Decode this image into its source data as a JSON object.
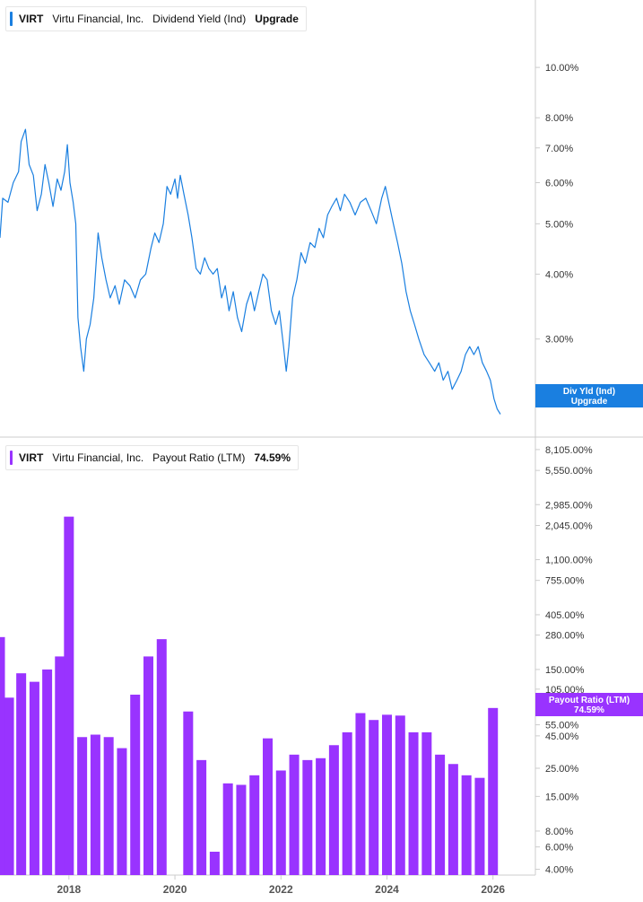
{
  "colors": {
    "dividend_line": "#1a7fe0",
    "payout_bar": "#9933ff",
    "axis": "#cccccc",
    "text": "#333333"
  },
  "legend_top": {
    "symbol": "VIRT",
    "company": "Virtu Financial, Inc.",
    "metric": "Dividend Yield (Ind)",
    "value": "Upgrade"
  },
  "legend_bottom": {
    "symbol": "VIRT",
    "company": "Virtu Financial, Inc.",
    "metric": "Payout Ratio (LTM)",
    "value": "74.59%"
  },
  "chart_data": [
    {
      "type": "line",
      "title": "VIRT Virtu Financial, Inc. Dividend Yield (Ind)",
      "y_scale": "log",
      "ylim": [
        1.95,
        11.5
      ],
      "xlim": [
        2016.7,
        2026.8
      ],
      "y_ticks": [
        {
          "v": 10,
          "label": "10.00%"
        },
        {
          "v": 8,
          "label": "8.00%"
        },
        {
          "v": 7,
          "label": "7.00%"
        },
        {
          "v": 6,
          "label": "6.00%"
        },
        {
          "v": 5,
          "label": "5.00%"
        },
        {
          "v": 4,
          "label": "4.00%"
        },
        {
          "v": 3,
          "label": "3.00%"
        }
      ],
      "series": [
        {
          "name": "Dividend Yield (Ind)",
          "points": [
            [
              2016.7,
              4.7
            ],
            [
              2016.75,
              5.6
            ],
            [
              2016.85,
              5.5
            ],
            [
              2016.95,
              6.0
            ],
            [
              2017.05,
              6.3
            ],
            [
              2017.1,
              7.2
            ],
            [
              2017.18,
              7.6
            ],
            [
              2017.25,
              6.5
            ],
            [
              2017.33,
              6.2
            ],
            [
              2017.4,
              5.3
            ],
            [
              2017.48,
              5.7
            ],
            [
              2017.55,
              6.5
            ],
            [
              2017.62,
              6.0
            ],
            [
              2017.7,
              5.4
            ],
            [
              2017.78,
              6.1
            ],
            [
              2017.85,
              5.8
            ],
            [
              2017.92,
              6.3
            ],
            [
              2017.97,
              7.1
            ],
            [
              2018.02,
              6.0
            ],
            [
              2018.08,
              5.5
            ],
            [
              2018.13,
              5.0
            ],
            [
              2018.17,
              3.3
            ],
            [
              2018.22,
              2.9
            ],
            [
              2018.28,
              2.6
            ],
            [
              2018.33,
              3.0
            ],
            [
              2018.4,
              3.2
            ],
            [
              2018.47,
              3.6
            ],
            [
              2018.55,
              4.8
            ],
            [
              2018.62,
              4.3
            ],
            [
              2018.7,
              3.9
            ],
            [
              2018.78,
              3.6
            ],
            [
              2018.87,
              3.8
            ],
            [
              2018.95,
              3.5
            ],
            [
              2019.05,
              3.9
            ],
            [
              2019.15,
              3.8
            ],
            [
              2019.25,
              3.6
            ],
            [
              2019.35,
              3.9
            ],
            [
              2019.45,
              4.0
            ],
            [
              2019.55,
              4.5
            ],
            [
              2019.62,
              4.8
            ],
            [
              2019.7,
              4.6
            ],
            [
              2019.78,
              5.0
            ],
            [
              2019.85,
              5.9
            ],
            [
              2019.92,
              5.7
            ],
            [
              2020.0,
              6.1
            ],
            [
              2020.05,
              5.6
            ],
            [
              2020.1,
              6.2
            ],
            [
              2020.17,
              5.7
            ],
            [
              2020.25,
              5.2
            ],
            [
              2020.32,
              4.7
            ],
            [
              2020.4,
              4.1
            ],
            [
              2020.48,
              4.0
            ],
            [
              2020.56,
              4.3
            ],
            [
              2020.64,
              4.1
            ],
            [
              2020.72,
              4.0
            ],
            [
              2020.8,
              4.1
            ],
            [
              2020.88,
              3.6
            ],
            [
              2020.95,
              3.8
            ],
            [
              2021.02,
              3.4
            ],
            [
              2021.1,
              3.7
            ],
            [
              2021.18,
              3.3
            ],
            [
              2021.26,
              3.1
            ],
            [
              2021.35,
              3.5
            ],
            [
              2021.43,
              3.7
            ],
            [
              2021.5,
              3.4
            ],
            [
              2021.58,
              3.7
            ],
            [
              2021.66,
              4.0
            ],
            [
              2021.74,
              3.9
            ],
            [
              2021.82,
              3.4
            ],
            [
              2021.9,
              3.2
            ],
            [
              2021.97,
              3.4
            ],
            [
              2022.05,
              2.9
            ],
            [
              2022.1,
              2.6
            ],
            [
              2022.15,
              2.9
            ],
            [
              2022.22,
              3.6
            ],
            [
              2022.3,
              3.9
            ],
            [
              2022.38,
              4.4
            ],
            [
              2022.46,
              4.2
            ],
            [
              2022.55,
              4.6
            ],
            [
              2022.64,
              4.5
            ],
            [
              2022.72,
              4.9
            ],
            [
              2022.8,
              4.7
            ],
            [
              2022.88,
              5.2
            ],
            [
              2022.96,
              5.4
            ],
            [
              2023.05,
              5.6
            ],
            [
              2023.12,
              5.3
            ],
            [
              2023.2,
              5.7
            ],
            [
              2023.3,
              5.5
            ],
            [
              2023.4,
              5.2
            ],
            [
              2023.5,
              5.5
            ],
            [
              2023.6,
              5.6
            ],
            [
              2023.7,
              5.3
            ],
            [
              2023.8,
              5.0
            ],
            [
              2023.9,
              5.6
            ],
            [
              2023.97,
              5.9
            ],
            [
              2024.05,
              5.4
            ],
            [
              2024.12,
              5.0
            ],
            [
              2024.2,
              4.6
            ],
            [
              2024.28,
              4.2
            ],
            [
              2024.36,
              3.7
            ],
            [
              2024.44,
              3.4
            ],
            [
              2024.52,
              3.2
            ],
            [
              2024.6,
              3.0
            ],
            [
              2024.7,
              2.8
            ],
            [
              2024.8,
              2.7
            ],
            [
              2024.9,
              2.6
            ],
            [
              2024.98,
              2.7
            ],
            [
              2025.06,
              2.5
            ],
            [
              2025.15,
              2.6
            ],
            [
              2025.23,
              2.4
            ],
            [
              2025.32,
              2.5
            ],
            [
              2025.4,
              2.6
            ],
            [
              2025.48,
              2.8
            ],
            [
              2025.56,
              2.9
            ],
            [
              2025.64,
              2.8
            ],
            [
              2025.72,
              2.9
            ],
            [
              2025.8,
              2.7
            ],
            [
              2025.88,
              2.6
            ],
            [
              2025.95,
              2.5
            ],
            [
              2026.02,
              2.3
            ],
            [
              2026.08,
              2.2
            ],
            [
              2026.14,
              2.15
            ]
          ]
        }
      ]
    },
    {
      "type": "bar",
      "title": "VIRT Virtu Financial, Inc. Payout Ratio (LTM)",
      "y_scale": "log",
      "ylim": [
        3.6,
        10000
      ],
      "xlim": [
        2016.7,
        2026.8
      ],
      "y_ticks": [
        {
          "v": 8105,
          "label": "8,105.00%"
        },
        {
          "v": 5550,
          "label": "5,550.00%"
        },
        {
          "v": 2985,
          "label": "2,985.00%"
        },
        {
          "v": 2045,
          "label": "2,045.00%"
        },
        {
          "v": 1100,
          "label": "1,100.00%"
        },
        {
          "v": 755,
          "label": "755.00%"
        },
        {
          "v": 405,
          "label": "405.00%"
        },
        {
          "v": 280,
          "label": "280.00%"
        },
        {
          "v": 150,
          "label": "150.00%"
        },
        {
          "v": 105,
          "label": "105.00%"
        },
        {
          "v": 55,
          "label": "55.00%"
        },
        {
          "v": 45,
          "label": "45.00%"
        },
        {
          "v": 25,
          "label": "25.00%"
        },
        {
          "v": 15,
          "label": "15.00%"
        },
        {
          "v": 8,
          "label": "8.00%"
        },
        {
          "v": 6,
          "label": "6.00%"
        },
        {
          "v": 4,
          "label": "4.00%"
        }
      ],
      "series": [
        {
          "name": "Payout Ratio (LTM)",
          "x": [
            2016.7,
            2016.87,
            2017.1,
            2017.35,
            2017.59,
            2017.83,
            2018.0,
            2018.25,
            2018.5,
            2018.75,
            2019.0,
            2019.25,
            2019.5,
            2019.75,
            2020.25,
            2020.5,
            2020.75,
            2021.0,
            2021.25,
            2021.5,
            2021.75,
            2022.0,
            2022.25,
            2022.5,
            2022.75,
            2023.0,
            2023.25,
            2023.5,
            2023.75,
            2024.0,
            2024.25,
            2024.5,
            2024.75,
            2025.0,
            2025.25,
            2025.5,
            2025.75,
            2026.0
          ],
          "values": [
            270,
            90,
            140,
            120,
            150,
            190,
            2400,
            44,
            46,
            44,
            36,
            95,
            190,
            260,
            70,
            29,
            5.5,
            19,
            18.5,
            22,
            43,
            24,
            32,
            29,
            30,
            38,
            48,
            68,
            60,
            66,
            65,
            48,
            48,
            32,
            27,
            22,
            21,
            74.59
          ]
        }
      ]
    }
  ],
  "x_axis": {
    "ticks": [
      {
        "year": 2018,
        "label": "2018"
      },
      {
        "year": 2020,
        "label": "2020"
      },
      {
        "year": 2022,
        "label": "2022"
      },
      {
        "year": 2024,
        "label": "2024"
      },
      {
        "year": 2026,
        "label": "2026"
      }
    ]
  },
  "callout_top": {
    "line1": "Div Yld (Ind)",
    "line2": "Upgrade",
    "partial_label": "2."
  },
  "callout_bottom": {
    "line1": "Payout Ratio (LTM)",
    "line2": "74.59%"
  }
}
